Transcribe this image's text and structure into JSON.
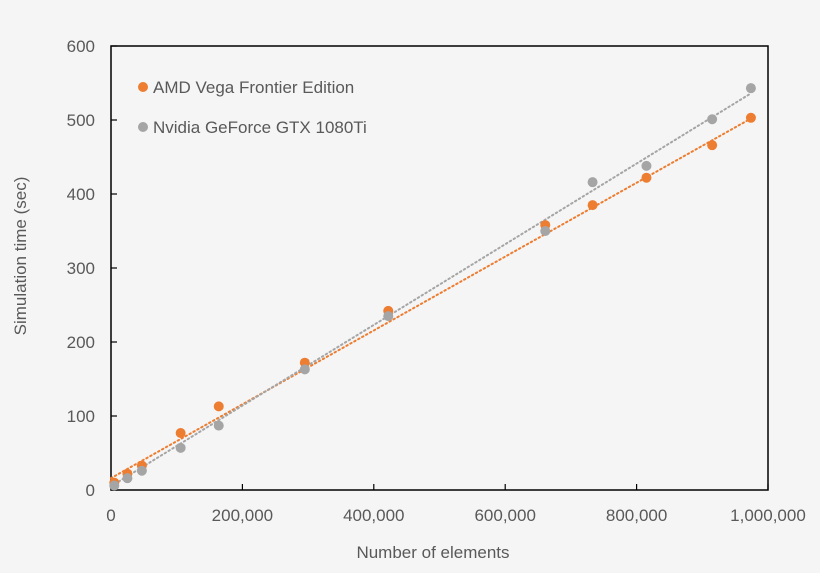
{
  "chart_data": {
    "type": "scatter",
    "title": "",
    "xlabel": "Number of elements",
    "ylabel": "Simulation time (sec)",
    "xlim": [
      0,
      1000000
    ],
    "ylim": [
      0,
      600
    ],
    "x_ticks": [
      0,
      200000,
      400000,
      600000,
      800000,
      1000000
    ],
    "x_tick_labels": [
      "0",
      "200,000",
      "400,000",
      "600,000",
      "800,000",
      "1,000,000"
    ],
    "y_ticks": [
      0,
      100,
      200,
      300,
      400,
      500,
      600
    ],
    "y_tick_labels": [
      "0",
      "100",
      "200",
      "300",
      "400",
      "500",
      "600"
    ],
    "grid": false,
    "legend_position": "upper-left-inside",
    "trendlines": "linear, dotted",
    "series": [
      {
        "name": "AMD Vega Frontier Edition",
        "color": "#ED7D31",
        "x": [
          5000,
          25000,
          47000,
          106000,
          164000,
          295000,
          422000,
          661000,
          733000,
          815000,
          915000,
          974000
        ],
        "y": [
          10,
          22,
          33,
          77,
          113,
          172,
          242,
          358,
          385,
          422,
          466,
          503
        ],
        "trendline": {
          "x": [
            0,
            974000
          ],
          "y": [
            16,
            502
          ]
        }
      },
      {
        "name": "Nvidia GeForce GTX 1080Ti",
        "color": "#A5A5A5",
        "x": [
          5000,
          25000,
          47000,
          106000,
          164000,
          295000,
          422000,
          661000,
          733000,
          815000,
          915000,
          974000
        ],
        "y": [
          6,
          16,
          26,
          57,
          87,
          163,
          235,
          350,
          416,
          438,
          501,
          543
        ],
        "trendline": {
          "x": [
            0,
            974000
          ],
          "y": [
            5,
            536
          ]
        }
      }
    ]
  },
  "legend": {
    "items": [
      {
        "label": "AMD Vega Frontier Edition",
        "color": "#ED7D31"
      },
      {
        "label": "Nvidia GeForce GTX 1080Ti",
        "color": "#A5A5A5"
      }
    ]
  },
  "axes": {
    "x_title": "Number of elements",
    "y_title": "Simulation time (sec)"
  }
}
